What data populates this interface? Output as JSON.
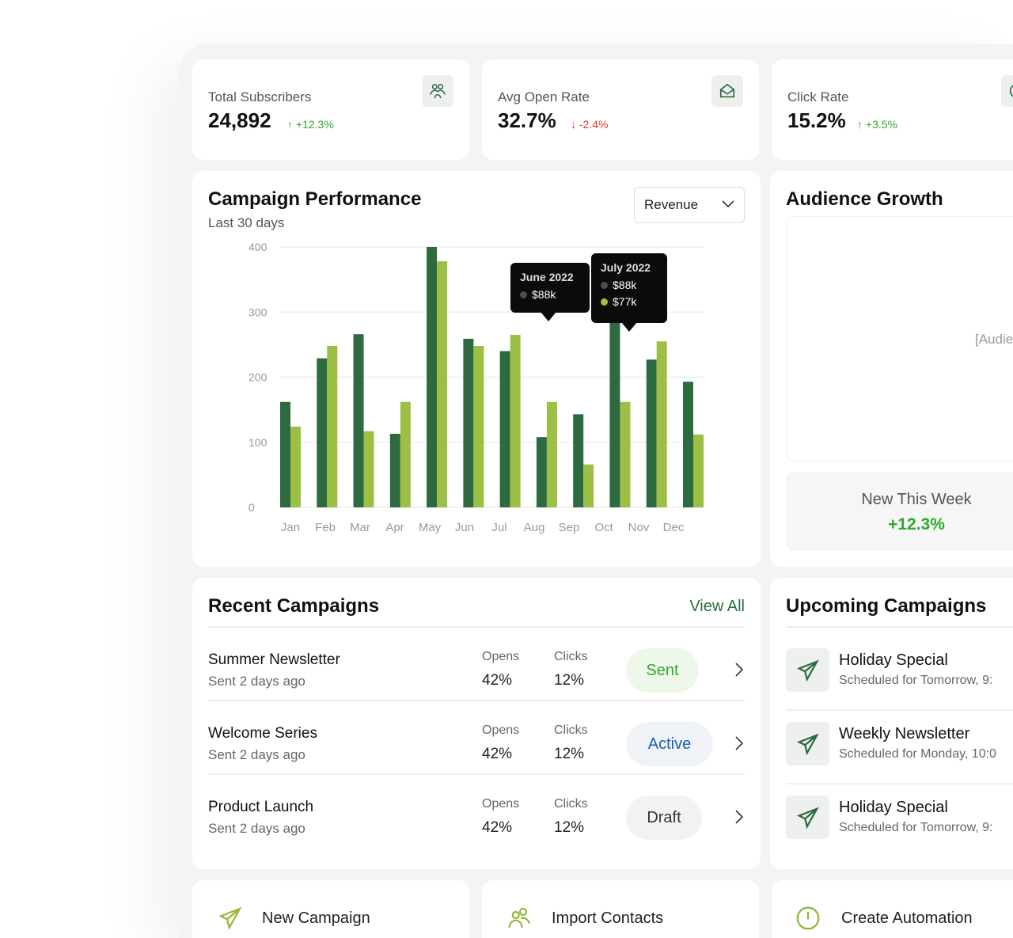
{
  "stats": [
    {
      "label": "Total Subscribers",
      "value": "24,892",
      "delta": "+12.3%",
      "trend": "up",
      "icon": "users-icon"
    },
    {
      "label": "Avg Open Rate",
      "value": "32.7%",
      "delta": "-2.4%",
      "trend": "down",
      "icon": "envelope-open-icon"
    },
    {
      "label": "Click Rate",
      "value": "15.2%",
      "delta": "+3.5%",
      "trend": "up",
      "icon": "target-icon"
    }
  ],
  "performance": {
    "title": "Campaign Performance",
    "subtitle": "Last 30 days",
    "metric": "Revenue",
    "tooltips": [
      {
        "title": "June 2022",
        "rows": [
          {
            "value": "$88k",
            "color": "#4a4d52"
          }
        ]
      },
      {
        "title": "July 2022",
        "rows": [
          {
            "value": "$88k",
            "color": "#4a4d52"
          },
          {
            "value": "$77k",
            "color": "#a3c143"
          }
        ]
      }
    ]
  },
  "chart_data": {
    "type": "bar",
    "categories": [
      "Jan",
      "Feb",
      "Mar",
      "Apr",
      "May",
      "Jun",
      "Jul",
      "Aug",
      "Sep",
      "Oct",
      "Nov",
      "Dec"
    ],
    "ylim": [
      0,
      400
    ],
    "yticks": [
      0,
      100,
      200,
      300,
      400
    ],
    "grid": true,
    "series": [
      {
        "color": "#2d6a3f",
        "values": [
          162,
          229,
          266,
          113,
          400,
          259,
          240,
          108,
          143,
          300,
          227,
          193
        ]
      },
      {
        "color": "#9dbf45",
        "values": [
          124,
          248,
          117,
          162,
          378,
          248,
          265,
          162,
          66,
          162,
          255,
          112
        ]
      }
    ]
  },
  "audience": {
    "title": "Audience Growth",
    "placeholder": "[Audie",
    "new_label": "New This Week",
    "new_value": "+12.3%"
  },
  "recent": {
    "title": "Recent Campaigns",
    "view_all": "View All",
    "opens_label": "Opens",
    "clicks_label": "Clicks",
    "rows": [
      {
        "name": "Summer Newsletter",
        "when": "Sent 2 days ago",
        "opens": "42%",
        "clicks": "12%",
        "status": "Sent"
      },
      {
        "name": "Welcome Series",
        "when": "Sent 2 days ago",
        "opens": "42%",
        "clicks": "12%",
        "status": "Active"
      },
      {
        "name": "Product Launch",
        "when": "Sent 2 days ago",
        "opens": "42%",
        "clicks": "12%",
        "status": "Draft"
      }
    ]
  },
  "upcoming": {
    "title": "Upcoming Campaigns",
    "items": [
      {
        "name": "Holiday Special",
        "when": "Scheduled for Tomorrow, 9:"
      },
      {
        "name": "Weekly Newsletter",
        "when": "Scheduled for Monday, 10:0"
      },
      {
        "name": "Holiday Special",
        "when": "Scheduled for Tomorrow, 9:"
      }
    ]
  },
  "actions": [
    {
      "label": "New Campaign",
      "icon": "send-icon"
    },
    {
      "label": "Import Contacts",
      "icon": "users-icon"
    },
    {
      "label": "Create Automation",
      "icon": "clock-icon"
    }
  ],
  "colors": {
    "accent": "#2d6a3f",
    "accent_light": "#9dbf45",
    "up": "#2ea82e",
    "down": "#d93a2b"
  }
}
